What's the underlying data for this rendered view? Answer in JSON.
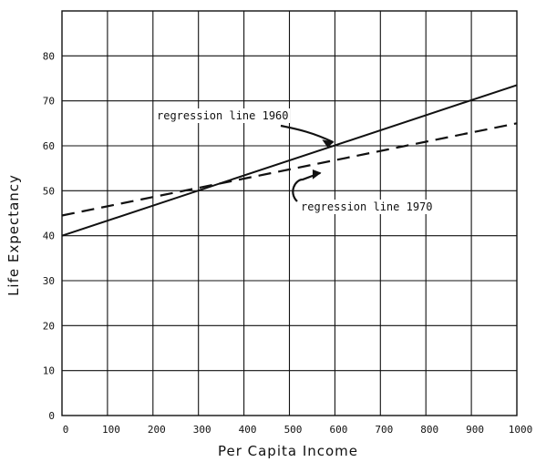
{
  "chart_data": {
    "type": "line",
    "xlabel": "Per Capita Income",
    "ylabel": "Life Expectancy",
    "xlim": [
      0,
      1000
    ],
    "ylim": [
      0,
      90
    ],
    "grid": true,
    "x_ticks": [
      "0",
      "100",
      "200",
      "300",
      "400",
      "500",
      "600",
      "700",
      "800",
      "900",
      "1000"
    ],
    "y_ticks": [
      "0",
      "10",
      "20",
      "30",
      "40",
      "50",
      "60",
      "70",
      "80"
    ],
    "series": [
      {
        "name": "regression line 1960",
        "style": "solid",
        "x": [
          0,
          1000
        ],
        "y": [
          40,
          73.5
        ]
      },
      {
        "name": "regression line 1970",
        "style": "dashed",
        "x": [
          0,
          1000
        ],
        "y": [
          44.5,
          65
        ]
      }
    ],
    "annotations": [
      {
        "text": "regression line 1960",
        "points_to": [
          600,
          60
        ]
      },
      {
        "text": "regression line 1970",
        "points_to": [
          560,
          56
        ]
      }
    ]
  }
}
